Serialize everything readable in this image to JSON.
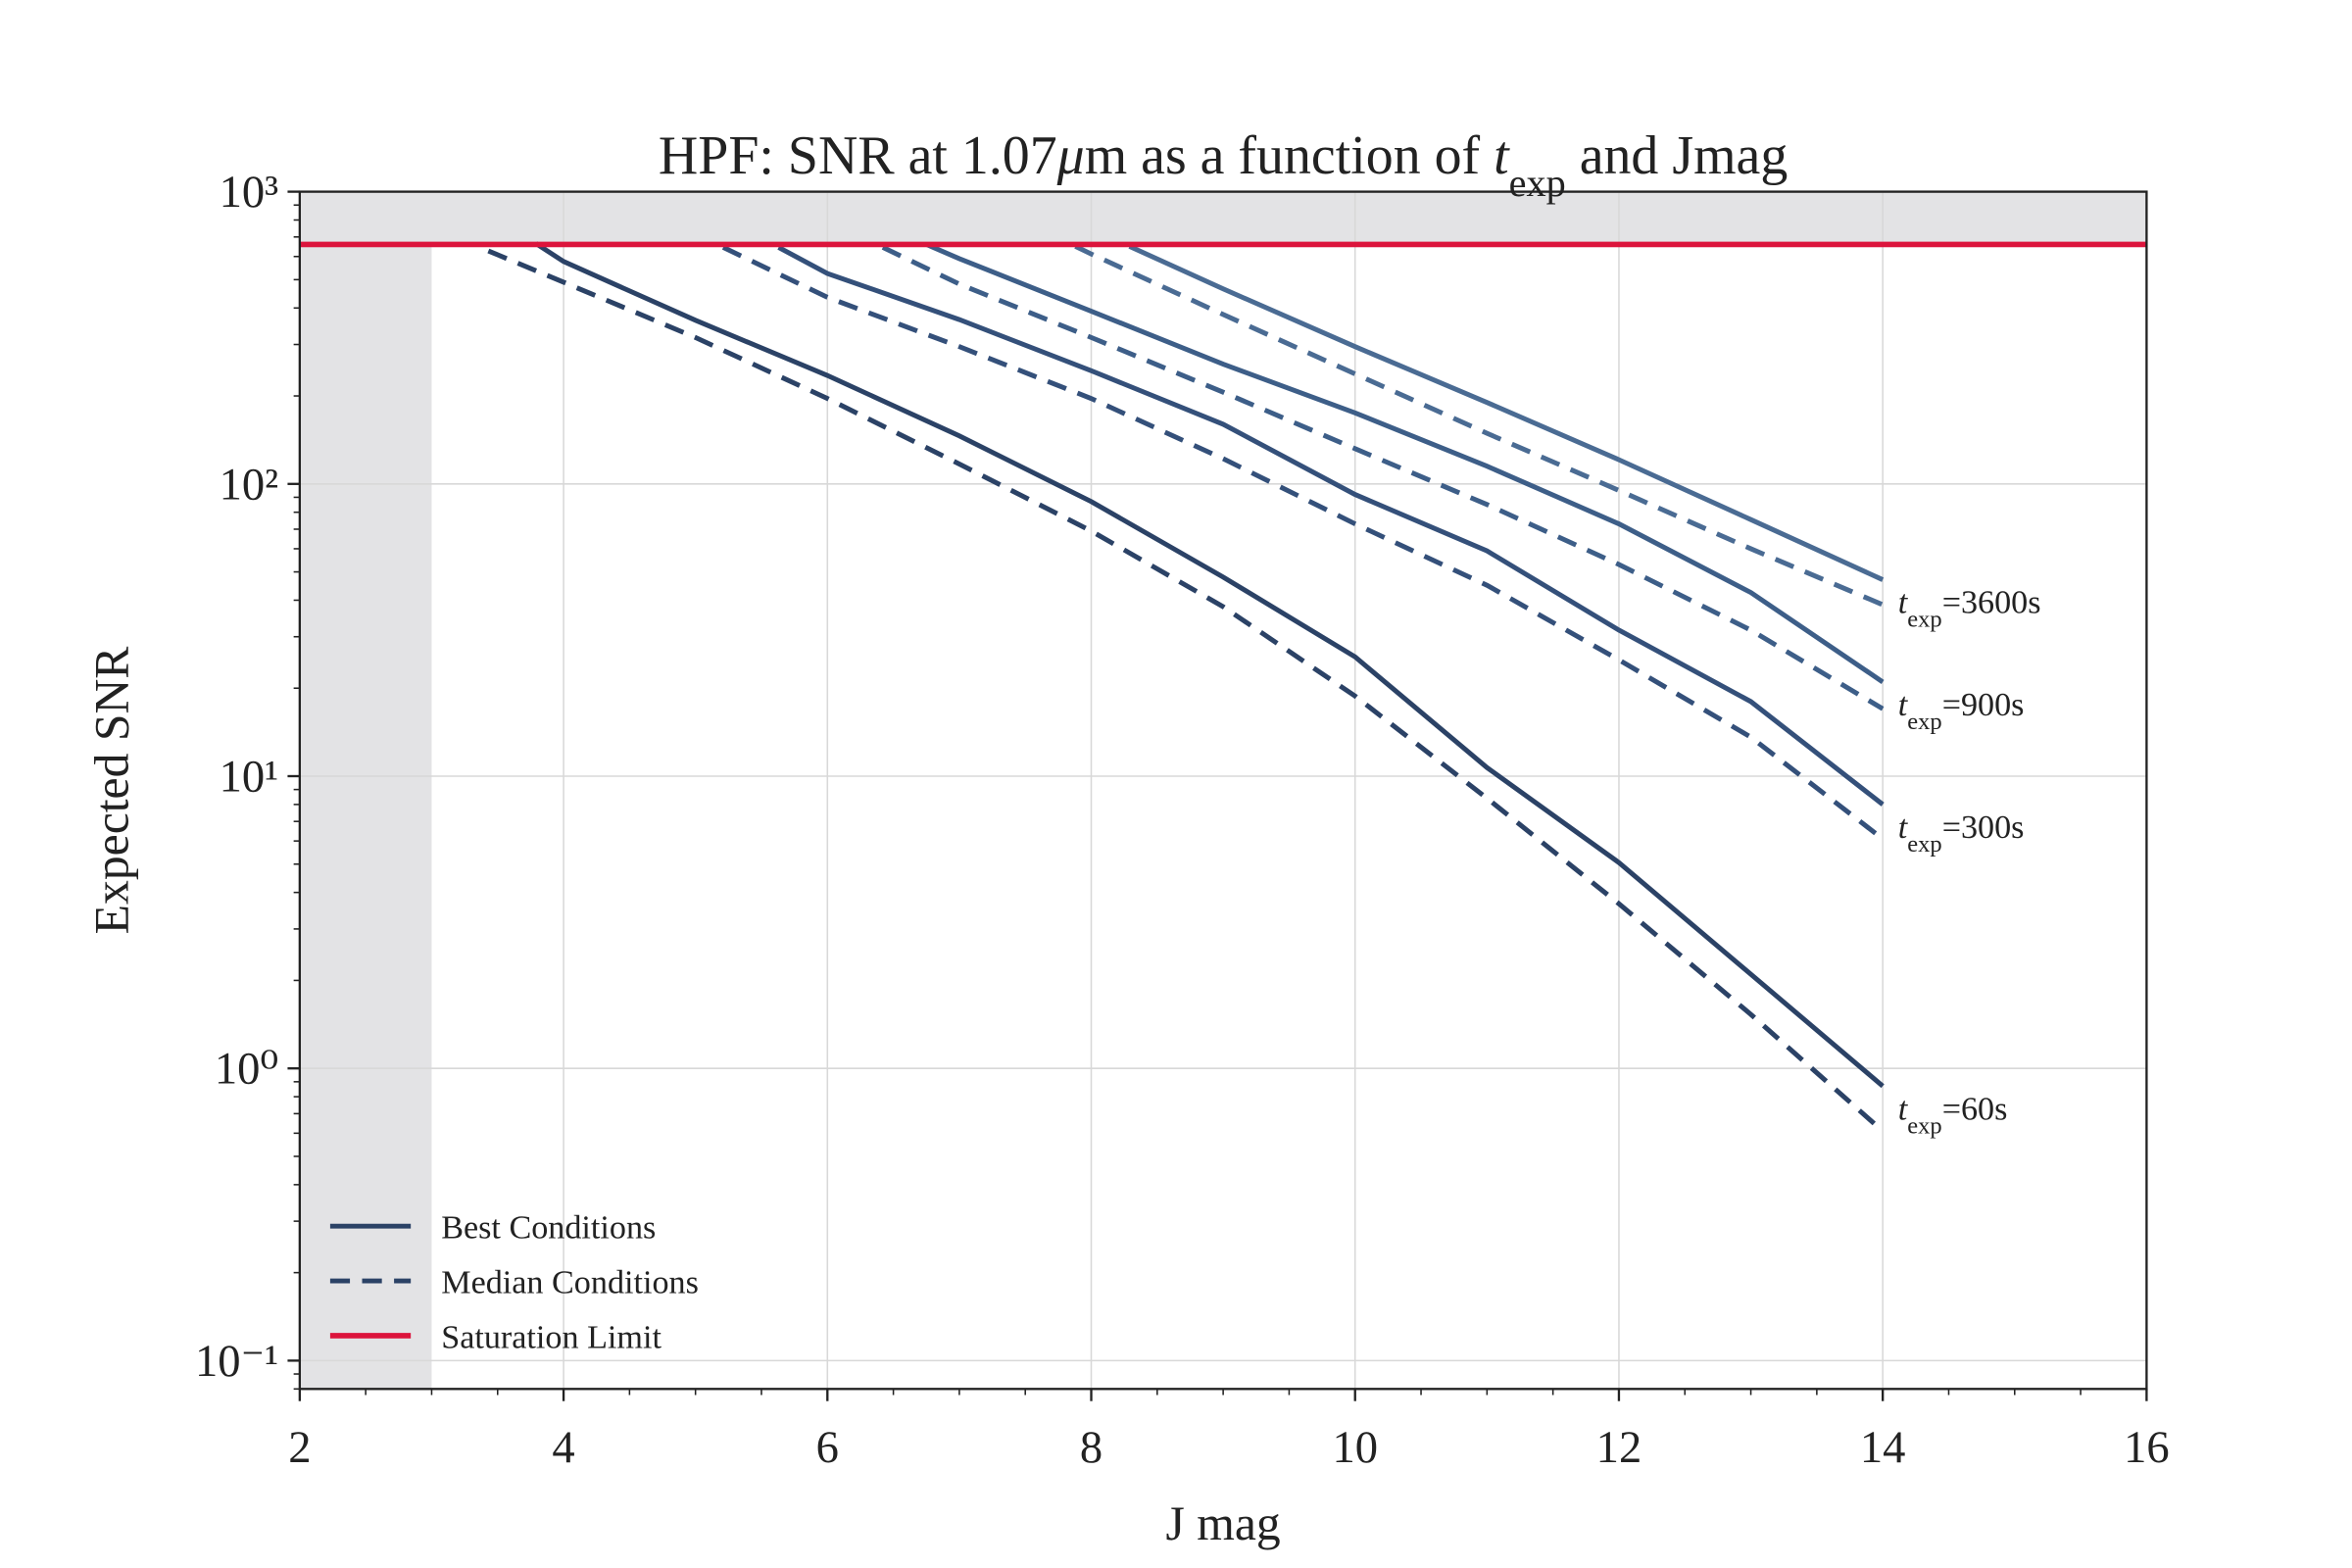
{
  "chart_data": {
    "type": "line",
    "title": [
      {
        "text": "HPF: SNR at 1.07"
      },
      {
        "text": "μ",
        "italic": true
      },
      {
        "text": "m as a function of "
      },
      {
        "text": "t",
        "italic": true
      },
      {
        "text": "exp",
        "sub": true
      },
      {
        "text": " and Jmag"
      }
    ],
    "x_label": "J mag",
    "y_label": "Expected SNR",
    "xlim": [
      2,
      16
    ],
    "xticks": [
      2,
      4,
      6,
      8,
      10,
      12,
      14,
      16
    ],
    "ylim": [
      0.08,
      1000
    ],
    "ylog": true,
    "yticks": [
      {
        "value": 0.1,
        "label": "10⁻¹"
      },
      {
        "value": 1,
        "label": "10⁰"
      },
      {
        "value": 10,
        "label": "10¹"
      },
      {
        "value": 100,
        "label": "10²"
      },
      {
        "value": 1000,
        "label": "10³"
      }
    ],
    "grid": true,
    "shaded_x": [
      2,
      3
    ],
    "shade_color": "#e3e3e5",
    "saturation": {
      "name": "Saturation Limit",
      "value": 660,
      "color": "#dc143c"
    },
    "legend": [
      {
        "name": "Best Conditions",
        "dashed": false,
        "color": "#2b4266"
      },
      {
        "name": "Median Conditions",
        "dashed": true,
        "color": "#2b4266"
      }
    ],
    "series": [
      {
        "color": "#2b4266",
        "dashed": false,
        "label": [
          {
            "text": "t",
            "italic": true
          },
          {
            "text": "exp",
            "sub": true
          },
          {
            "text": "=60s"
          }
        ],
        "x": [
          3.79,
          4,
          5,
          6,
          7,
          8,
          9,
          10,
          11,
          12,
          13,
          14
        ],
        "values": [
          665,
          577,
          363,
          235,
          146,
          87,
          48,
          25.6,
          10.7,
          5.06,
          2.1,
          0.87
        ]
      },
      {
        "color": "#2b4266",
        "dashed": true,
        "x": [
          3.43,
          4,
          5,
          6,
          7,
          8,
          9,
          10,
          11,
          12,
          13,
          14
        ],
        "values": [
          627,
          490,
          317,
          196,
          117,
          69,
          38,
          18.8,
          8.4,
          3.66,
          1.53,
          0.61
        ]
      },
      {
        "color": "#34507a",
        "dashed": false,
        "label": [
          {
            "text": "t",
            "italic": true
          },
          {
            "text": "exp",
            "sub": true
          },
          {
            "text": "=300s"
          }
        ],
        "x": [
          5.63,
          6,
          7,
          8,
          9,
          10,
          11,
          12,
          13,
          14
        ],
        "values": [
          645,
          525,
          365,
          244,
          160,
          92,
          59,
          31.6,
          18,
          8
        ]
      },
      {
        "color": "#34507a",
        "dashed": true,
        "x": [
          5.21,
          6,
          7,
          8,
          9,
          10,
          11,
          12,
          13,
          14
        ],
        "values": [
          645,
          435,
          295,
          196,
          122,
          73,
          45,
          25,
          13.6,
          6.1
        ]
      },
      {
        "color": "#3d5e88",
        "dashed": false,
        "label": [
          {
            "text": "t",
            "italic": true
          },
          {
            "text": "exp",
            "sub": true
          },
          {
            "text": "=900s"
          }
        ],
        "x": [
          6.75,
          7,
          8,
          9,
          10,
          11,
          12,
          13,
          14
        ],
        "values": [
          660,
          590,
          390,
          257,
          175,
          115,
          73,
          42.5,
          21
        ]
      },
      {
        "color": "#3d5e88",
        "dashed": true,
        "x": [
          6.42,
          7,
          8,
          9,
          10,
          11,
          12,
          13,
          14
        ],
        "values": [
          645,
          483,
          317,
          206,
          132,
          85,
          53,
          31.6,
          17
        ]
      },
      {
        "color": "#4a6b93",
        "dashed": false,
        "label": [
          {
            "text": "t",
            "italic": true
          },
          {
            "text": "exp",
            "sub": true
          },
          {
            "text": "=3600s"
          }
        ],
        "x": [
          8.29,
          9,
          10,
          11,
          12,
          13,
          14
        ],
        "values": [
          650,
          465,
          295,
          190,
          121,
          75.5,
          47
        ]
      },
      {
        "color": "#4a6b93",
        "dashed": true,
        "x": [
          7.88,
          8,
          9,
          10,
          11,
          12,
          13,
          14
        ],
        "values": [
          650,
          612,
          380,
          238,
          149,
          95,
          60,
          38.6
        ]
      }
    ]
  }
}
